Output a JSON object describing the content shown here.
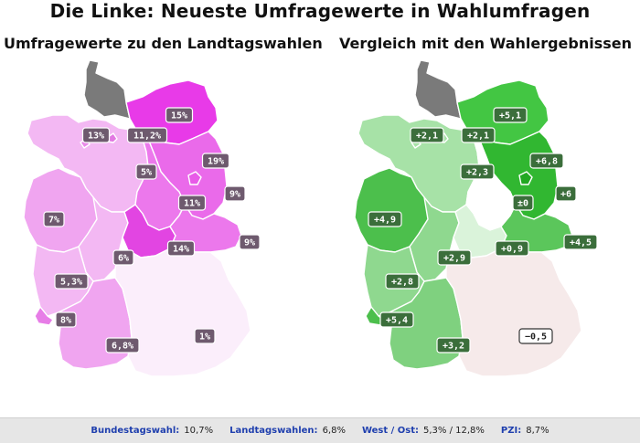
{
  "title": "Die Linke: Neueste Umfragewerte in Wahlumfragen",
  "left_map": {
    "subtitle": "Umfragewerte zu den Landtagswahlen",
    "states": [
      {
        "name": "Schleswig-Holstein",
        "label": "",
        "color": "#7a7a7a"
      },
      {
        "name": "Mecklenburg-Vorpommern",
        "label": "15%",
        "color": "#e83ae8"
      },
      {
        "name": "Hamburg",
        "label": "13%",
        "color": "#e279e2"
      },
      {
        "name": "Bremen",
        "label": "11,2%",
        "color": "#e88ae8"
      },
      {
        "name": "Niedersachsen",
        "label": "5%",
        "color": "#f3b8f3"
      },
      {
        "name": "Brandenburg",
        "label": "19%",
        "color": "#ea6aea"
      },
      {
        "name": "Berlin",
        "label": "9%",
        "color": "#e85ae8"
      },
      {
        "name": "Sachsen-Anhalt",
        "label": "11%",
        "color": "#ec78ec"
      },
      {
        "name": "Nordrhein-Westfalen",
        "label": "7%",
        "color": "#f0a5f0"
      },
      {
        "name": "Hessen",
        "label": "6%",
        "color": "#f3b8f3"
      },
      {
        "name": "Thüringen",
        "label": "14%",
        "color": "#e245e2"
      },
      {
        "name": "Sachsen",
        "label": "9%",
        "color": "#ec78ec"
      },
      {
        "name": "Rheinland-Pfalz",
        "label": "5,3%",
        "color": "#f3b8f3"
      },
      {
        "name": "Saarland",
        "label": "8%",
        "color": "#e77de7"
      },
      {
        "name": "Baden-Württemberg",
        "label": "6,8%",
        "color": "#f0a5f0"
      },
      {
        "name": "Bayern",
        "label": "1%",
        "color": "#fbeefb"
      }
    ]
  },
  "right_map": {
    "subtitle": "Vergleich mit den Wahlergebnissen",
    "states": [
      {
        "name": "Schleswig-Holstein",
        "label": "",
        "color": "#7a7a7a"
      },
      {
        "name": "Mecklenburg-Vorpommern",
        "label": "+5,1",
        "color": "#43c643"
      },
      {
        "name": "Hamburg",
        "label": "+2,1",
        "color": "#a7e2a7"
      },
      {
        "name": "Bremen",
        "label": "+2,1",
        "color": "#a7e2a7"
      },
      {
        "name": "Niedersachsen",
        "label": "+2,3",
        "color": "#a7e2a7"
      },
      {
        "name": "Brandenburg",
        "label": "+6,8",
        "color": "#31b731"
      },
      {
        "name": "Berlin",
        "label": "+6",
        "color": "#22a822"
      },
      {
        "name": "Sachsen-Anhalt",
        "label": "±0",
        "color": "#ffffff"
      },
      {
        "name": "Nordrhein-Westfalen",
        "label": "+4,9",
        "color": "#4cbf4c"
      },
      {
        "name": "Hessen",
        "label": "+2,9",
        "color": "#8fd88f"
      },
      {
        "name": "Thüringen",
        "label": "+0,9",
        "color": "#daf3da"
      },
      {
        "name": "Sachsen",
        "label": "+4,5",
        "color": "#5bc65b"
      },
      {
        "name": "Rheinland-Pfalz",
        "label": "+2,8",
        "color": "#8fd88f"
      },
      {
        "name": "Saarland",
        "label": "+5,4",
        "color": "#4cbf4c"
      },
      {
        "name": "Baden-Württemberg",
        "label": "+3,2",
        "color": "#7fd17f"
      },
      {
        "name": "Bayern",
        "label": "−0,5",
        "color": "#f6eaea"
      }
    ]
  },
  "footer": {
    "bundestagswahl_label": "Bundestagswahl:",
    "bundestagswahl_value": "10,7%",
    "landtagswahlen_label": "Landtagswahlen:",
    "landtagswahlen_value": "6,8%",
    "west_ost_label": "West / Ost:",
    "west_ost_value": "5,3% / 12,8%",
    "pzi_label": "PZI:",
    "pzi_value": "8,7%"
  }
}
